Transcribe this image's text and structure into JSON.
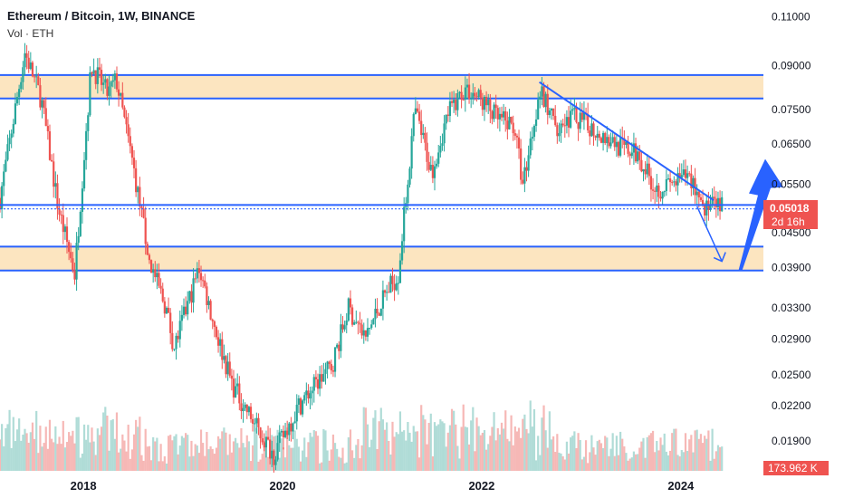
{
  "header": {
    "title": "Ethereum / Bitcoin, 1W, BINANCE",
    "volume_label": "Vol · ETH"
  },
  "colors": {
    "up": "#26a69a",
    "down": "#ef5350",
    "zone": "#fce5c0",
    "line": "#2962ff",
    "price_badge": "#ef5350"
  },
  "chart_data": {
    "type": "candlestick",
    "title": "Ethereum / Bitcoin, 1W, BINANCE",
    "y_scale": "log",
    "ylim": [
      0.0168,
      0.118
    ],
    "y_ticks": [
      "0.11000",
      "0.09000",
      "0.07500",
      "0.06500",
      "0.05500",
      "0.04500",
      "0.03900",
      "0.03300",
      "0.02900",
      "0.02500",
      "0.02200",
      "0.01900"
    ],
    "x_ticks": [
      "2018",
      "2020",
      "2022",
      "2024"
    ],
    "x_range": [
      "2017-03",
      "2024-11"
    ],
    "price_path": [
      [
        "2017-03",
        0.052
      ],
      [
        "2017-06",
        0.095
      ],
      [
        "2017-08",
        0.078
      ],
      [
        "2017-10",
        0.05
      ],
      [
        "2017-12",
        0.038
      ],
      [
        "2018-02",
        0.09
      ],
      [
        "2018-04",
        0.08
      ],
      [
        "2018-05",
        0.085
      ],
      [
        "2018-07",
        0.06
      ],
      [
        "2018-09",
        0.04
      ],
      [
        "2018-11",
        0.033
      ],
      [
        "2018-12",
        0.028
      ],
      [
        "2019-03",
        0.039
      ],
      [
        "2019-05",
        0.03
      ],
      [
        "2019-07",
        0.024
      ],
      [
        "2019-10",
        0.02
      ],
      [
        "2019-12",
        0.018
      ],
      [
        "2020-03",
        0.022
      ],
      [
        "2020-05",
        0.024
      ],
      [
        "2020-07",
        0.026
      ],
      [
        "2020-09",
        0.033
      ],
      [
        "2020-11",
        0.029
      ],
      [
        "2021-01",
        0.034
      ],
      [
        "2021-03",
        0.038
      ],
      [
        "2021-05",
        0.075
      ],
      [
        "2021-07",
        0.058
      ],
      [
        "2021-09",
        0.074
      ],
      [
        "2021-11",
        0.082
      ],
      [
        "2022-01",
        0.078
      ],
      [
        "2022-03",
        0.072
      ],
      [
        "2022-05",
        0.07
      ],
      [
        "2022-06",
        0.055
      ],
      [
        "2022-08",
        0.081
      ],
      [
        "2022-10",
        0.07
      ],
      [
        "2022-12",
        0.073
      ],
      [
        "2023-02",
        0.07
      ],
      [
        "2023-04",
        0.067
      ],
      [
        "2023-06",
        0.064
      ],
      [
        "2023-08",
        0.062
      ],
      [
        "2023-10",
        0.054
      ],
      [
        "2023-12",
        0.055
      ],
      [
        "2024-02",
        0.057
      ],
      [
        "2024-04",
        0.05
      ],
      [
        "2024-06",
        0.0502
      ]
    ],
    "current_price": "0.05018",
    "countdown": "2d 16h",
    "volume_value": "173.962 K",
    "zones": [
      [
        0.0785,
        0.0865
      ],
      [
        0.0385,
        0.0425
      ]
    ],
    "levels": [
      0.0505,
      0.0497
    ],
    "trendline": [
      [
        "2022-08",
        0.084
      ],
      [
        "2024-05",
        0.0515
      ]
    ],
    "projection": [
      [
        "2024-03",
        0.0502
      ],
      [
        "2024-06",
        0.04
      ],
      [
        "2024-08",
        0.0385
      ],
      [
        "2024-11",
        0.055
      ]
    ]
  }
}
